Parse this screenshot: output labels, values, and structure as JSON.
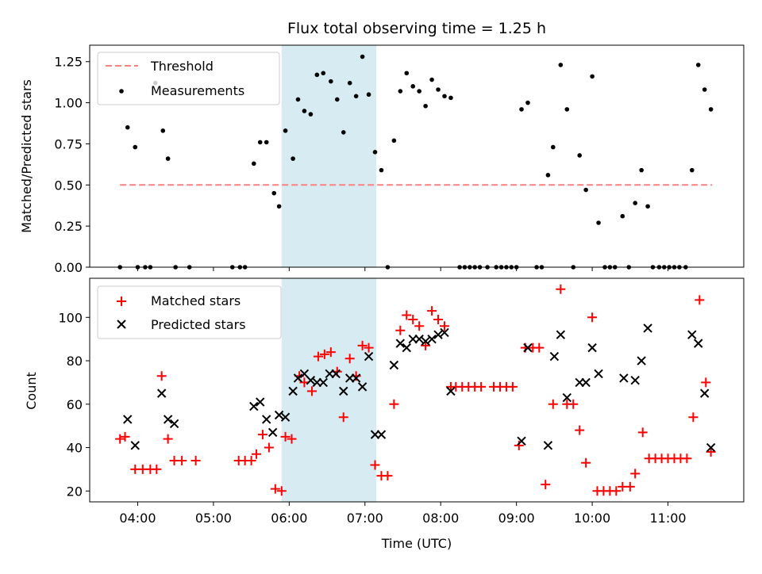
{
  "chart_data": [
    {
      "type": "scatter",
      "title": "Flux total observing time = 1.25 h",
      "xlabel": "",
      "ylabel": "Matched/Predicted stars",
      "xlim": [
        "03:22",
        "12:00"
      ],
      "ylim": [
        0,
        1.35
      ],
      "y_ticks": [
        "0.00",
        "0.25",
        "0.50",
        "0.75",
        "1.00",
        "1.25"
      ],
      "x_tick_values": [
        "04:00",
        "05:00",
        "06:00",
        "07:00",
        "08:00",
        "09:00",
        "10:00",
        "11:00"
      ],
      "shaded_span": [
        "05:54",
        "07:09"
      ],
      "threshold": {
        "label": "Threshold",
        "value": 0.5,
        "start": "03:46",
        "end": "11:35",
        "color": "#ff8080"
      },
      "legend": {
        "position": "top-left",
        "entries": [
          "Threshold",
          "Measurements"
        ]
      },
      "series": [
        {
          "name": "Measurements",
          "color": "#000000",
          "marker": "dot",
          "points": [
            [
              "03:46",
              0.0
            ],
            [
              "03:52",
              0.85
            ],
            [
              "03:58",
              0.73
            ],
            [
              "04:00",
              0.0
            ],
            [
              "04:06",
              0.0
            ],
            [
              "04:10",
              0.0
            ],
            [
              "04:14",
              1.12
            ],
            [
              "04:20",
              0.83
            ],
            [
              "04:24",
              0.66
            ],
            [
              "04:30",
              0.0
            ],
            [
              "04:41",
              0.0
            ],
            [
              "05:15",
              0.0
            ],
            [
              "05:21",
              0.0
            ],
            [
              "05:25",
              0.0
            ],
            [
              "05:32",
              0.63
            ],
            [
              "05:37",
              0.76
            ],
            [
              "05:42",
              0.76
            ],
            [
              "05:48",
              0.45
            ],
            [
              "05:52",
              0.37
            ],
            [
              "05:57",
              0.83
            ],
            [
              "06:03",
              0.66
            ],
            [
              "06:07",
              1.02
            ],
            [
              "06:12",
              0.95
            ],
            [
              "06:17",
              0.93
            ],
            [
              "06:22",
              1.17
            ],
            [
              "06:27",
              1.18
            ],
            [
              "06:33",
              1.13
            ],
            [
              "06:38",
              1.02
            ],
            [
              "06:43",
              0.82
            ],
            [
              "06:48",
              1.12
            ],
            [
              "06:53",
              1.04
            ],
            [
              "06:58",
              1.28
            ],
            [
              "07:03",
              1.05
            ],
            [
              "07:08",
              0.7
            ],
            [
              "07:13",
              0.59
            ],
            [
              "07:18",
              0.0
            ],
            [
              "07:23",
              0.77
            ],
            [
              "07:28",
              1.07
            ],
            [
              "07:33",
              1.18
            ],
            [
              "07:38",
              1.1
            ],
            [
              "07:43",
              1.07
            ],
            [
              "07:48",
              0.98
            ],
            [
              "07:53",
              1.14
            ],
            [
              "07:58",
              1.08
            ],
            [
              "08:03",
              1.04
            ],
            [
              "08:08",
              1.03
            ],
            [
              "08:15",
              0.0
            ],
            [
              "08:19",
              0.0
            ],
            [
              "08:23",
              0.0
            ],
            [
              "08:27",
              0.0
            ],
            [
              "08:31",
              0.0
            ],
            [
              "08:37",
              0.0
            ],
            [
              "08:44",
              0.0
            ],
            [
              "08:48",
              0.0
            ],
            [
              "08:52",
              0.0
            ],
            [
              "08:56",
              0.0
            ],
            [
              "09:00",
              0.0
            ],
            [
              "09:04",
              0.96
            ],
            [
              "09:09",
              1.0
            ],
            [
              "09:16",
              0.0
            ],
            [
              "09:20",
              0.0
            ],
            [
              "09:25",
              0.56
            ],
            [
              "09:29",
              0.73
            ],
            [
              "09:35",
              1.23
            ],
            [
              "09:40",
              0.96
            ],
            [
              "09:45",
              0.0
            ],
            [
              "09:50",
              0.68
            ],
            [
              "09:55",
              0.47
            ],
            [
              "10:00",
              1.16
            ],
            [
              "10:05",
              0.27
            ],
            [
              "10:10",
              0.0
            ],
            [
              "10:14",
              0.0
            ],
            [
              "10:18",
              0.0
            ],
            [
              "10:24",
              0.31
            ],
            [
              "10:29",
              0.0
            ],
            [
              "10:34",
              0.39
            ],
            [
              "10:39",
              0.59
            ],
            [
              "10:44",
              0.37
            ],
            [
              "10:48",
              0.0
            ],
            [
              "10:53",
              0.0
            ],
            [
              "10:57",
              0.0
            ],
            [
              "11:01",
              0.0
            ],
            [
              "11:05",
              0.0
            ],
            [
              "11:09",
              0.0
            ],
            [
              "11:14",
              0.0
            ],
            [
              "11:19",
              0.59
            ],
            [
              "11:24",
              1.23
            ],
            [
              "11:29",
              1.08
            ],
            [
              "11:34",
              0.96
            ]
          ]
        }
      ]
    },
    {
      "type": "scatter",
      "title": "",
      "xlabel": "Time (UTC)",
      "ylabel": "Count",
      "xlim": [
        "03:22",
        "12:00"
      ],
      "ylim": [
        15,
        118
      ],
      "y_ticks": [
        "20",
        "40",
        "60",
        "80",
        "100"
      ],
      "x_ticks": [
        "04:00",
        "05:00",
        "06:00",
        "07:00",
        "08:00",
        "09:00",
        "10:00",
        "11:00"
      ],
      "shaded_span": [
        "05:54",
        "07:09"
      ],
      "legend": {
        "position": "top-left",
        "entries": [
          "Matched stars",
          "Predicted stars"
        ]
      },
      "series": [
        {
          "name": "Matched stars",
          "color": "#ff0000",
          "marker": "plus",
          "points": [
            [
              "03:46",
              44
            ],
            [
              "03:50",
              45
            ],
            [
              "03:58",
              30
            ],
            [
              "04:04",
              30
            ],
            [
              "04:10",
              30
            ],
            [
              "04:15",
              30
            ],
            [
              "04:19",
              73
            ],
            [
              "04:24",
              44
            ],
            [
              "04:29",
              34
            ],
            [
              "04:35",
              34
            ],
            [
              "04:46",
              34
            ],
            [
              "05:20",
              34
            ],
            [
              "05:25",
              34
            ],
            [
              "05:30",
              34
            ],
            [
              "05:34",
              37
            ],
            [
              "05:39",
              46
            ],
            [
              "05:44",
              40
            ],
            [
              "05:49",
              21
            ],
            [
              "05:54",
              20
            ],
            [
              "05:57",
              45
            ],
            [
              "06:02",
              44
            ],
            [
              "06:08",
              73
            ],
            [
              "06:12",
              70
            ],
            [
              "06:18",
              66
            ],
            [
              "06:23",
              82
            ],
            [
              "06:28",
              83
            ],
            [
              "06:33",
              84
            ],
            [
              "06:38",
              75
            ],
            [
              "06:43",
              54
            ],
            [
              "06:48",
              81
            ],
            [
              "06:53",
              73
            ],
            [
              "06:58",
              87
            ],
            [
              "07:03",
              86
            ],
            [
              "07:08",
              32
            ],
            [
              "07:13",
              27
            ],
            [
              "07:18",
              27
            ],
            [
              "07:23",
              60
            ],
            [
              "07:28",
              94
            ],
            [
              "07:33",
              101
            ],
            [
              "07:38",
              99
            ],
            [
              "07:43",
              96
            ],
            [
              "07:48",
              87
            ],
            [
              "07:53",
              103
            ],
            [
              "07:58",
              99
            ],
            [
              "08:03",
              96
            ],
            [
              "08:08",
              68
            ],
            [
              "08:12",
              68
            ],
            [
              "08:17",
              68
            ],
            [
              "08:22",
              68
            ],
            [
              "08:27",
              68
            ],
            [
              "08:32",
              68
            ],
            [
              "08:42",
              68
            ],
            [
              "08:47",
              68
            ],
            [
              "08:52",
              68
            ],
            [
              "08:57",
              68
            ],
            [
              "09:02",
              41
            ],
            [
              "09:07",
              86
            ],
            [
              "09:13",
              86
            ],
            [
              "09:18",
              86
            ],
            [
              "09:23",
              23
            ],
            [
              "09:29",
              60
            ],
            [
              "09:35",
              113
            ],
            [
              "09:40",
              60
            ],
            [
              "09:45",
              60
            ],
            [
              "09:50",
              48
            ],
            [
              "09:55",
              33
            ],
            [
              "10:00",
              100
            ],
            [
              "10:04",
              20
            ],
            [
              "10:09",
              20
            ],
            [
              "10:14",
              20
            ],
            [
              "10:19",
              20
            ],
            [
              "10:24",
              22
            ],
            [
              "10:30",
              22
            ],
            [
              "10:34",
              28
            ],
            [
              "10:40",
              47
            ],
            [
              "10:45",
              35
            ],
            [
              "10:50",
              35
            ],
            [
              "10:55",
              35
            ],
            [
              "11:00",
              35
            ],
            [
              "11:05",
              35
            ],
            [
              "11:10",
              35
            ],
            [
              "11:15",
              35
            ],
            [
              "11:20",
              54
            ],
            [
              "11:25",
              108
            ],
            [
              "11:30",
              70
            ],
            [
              "11:34",
              38
            ]
          ]
        },
        {
          "name": "Predicted stars",
          "color": "#000000",
          "marker": "x",
          "points": [
            [
              "03:52",
              53
            ],
            [
              "03:58",
              41
            ],
            [
              "04:19",
              65
            ],
            [
              "04:24",
              53
            ],
            [
              "04:29",
              51
            ],
            [
              "05:32",
              59
            ],
            [
              "05:37",
              61
            ],
            [
              "05:42",
              53
            ],
            [
              "05:47",
              47
            ],
            [
              "05:52",
              55
            ],
            [
              "05:57",
              54
            ],
            [
              "06:03",
              66
            ],
            [
              "06:07",
              72
            ],
            [
              "06:12",
              74
            ],
            [
              "06:17",
              71
            ],
            [
              "06:22",
              70
            ],
            [
              "06:27",
              70
            ],
            [
              "06:32",
              74
            ],
            [
              "06:37",
              74
            ],
            [
              "06:43",
              66
            ],
            [
              "06:48",
              72
            ],
            [
              "06:53",
              72
            ],
            [
              "06:58",
              68
            ],
            [
              "07:03",
              82
            ],
            [
              "07:08",
              46
            ],
            [
              "07:13",
              46
            ],
            [
              "07:23",
              78
            ],
            [
              "07:28",
              88
            ],
            [
              "07:33",
              86
            ],
            [
              "07:38",
              90
            ],
            [
              "07:43",
              90
            ],
            [
              "07:48",
              89
            ],
            [
              "07:53",
              90
            ],
            [
              "07:58",
              92
            ],
            [
              "08:03",
              93
            ],
            [
              "08:08",
              66
            ],
            [
              "09:04",
              43
            ],
            [
              "09:09",
              86
            ],
            [
              "09:25",
              41
            ],
            [
              "09:30",
              82
            ],
            [
              "09:35",
              92
            ],
            [
              "09:40",
              63
            ],
            [
              "09:50",
              70
            ],
            [
              "09:55",
              70
            ],
            [
              "10:00",
              86
            ],
            [
              "10:05",
              74
            ],
            [
              "10:25",
              72
            ],
            [
              "10:34",
              71
            ],
            [
              "10:39",
              80
            ],
            [
              "10:44",
              95
            ],
            [
              "11:19",
              92
            ],
            [
              "11:24",
              88
            ],
            [
              "11:29",
              65
            ],
            [
              "11:34",
              40
            ]
          ]
        }
      ]
    }
  ]
}
